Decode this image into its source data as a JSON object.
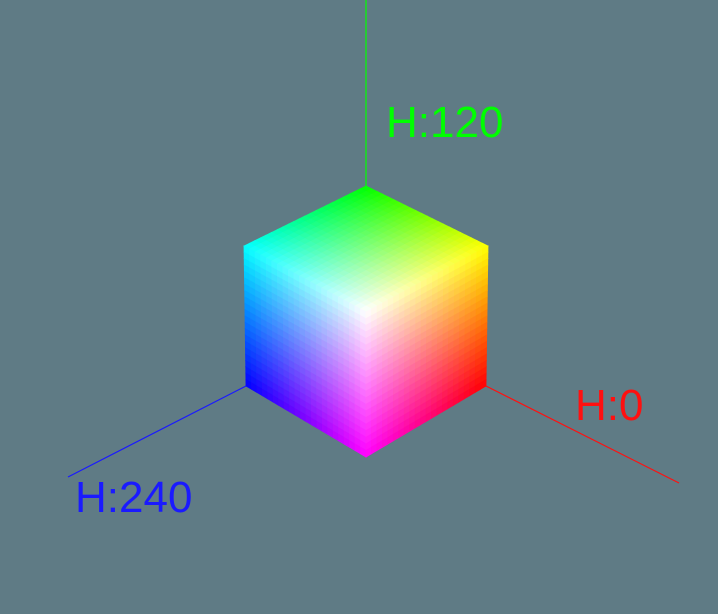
{
  "background_color": "#5f7b85",
  "axes": {
    "green": {
      "label": "H:120",
      "color": "#00ff00"
    },
    "red": {
      "label": "H:0",
      "color": "#ff1010"
    },
    "blue": {
      "label": "H:240",
      "color": "#1a1aff"
    }
  },
  "cube": {
    "top_face_colors": [
      "#00ff00",
      "#ffff00",
      "#ffffff",
      "#00ffff"
    ],
    "left_face_colors": [
      "#00ffff",
      "#ffffff",
      "#ff00ff",
      "#0000ff"
    ],
    "right_face_colors": [
      "#ffffff",
      "#ffff00",
      "#ff0000",
      "#ff00ff"
    ]
  }
}
